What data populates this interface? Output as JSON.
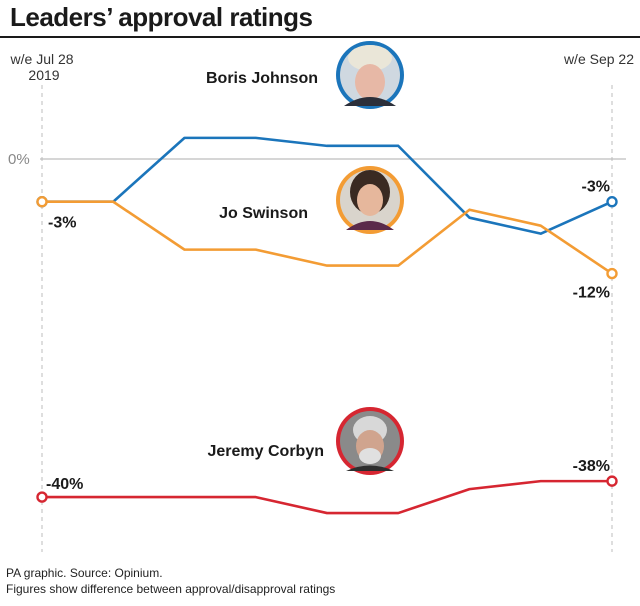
{
  "title": "Leaders’ approval ratings",
  "footer": {
    "source": "PA graphic. Source: Opinium.",
    "note": "Figures show difference between approval/disapproval ratings"
  },
  "chart_data": {
    "type": "line",
    "x_start_label": "w/e Jul 28\n2019",
    "x_end_label": "w/e Sep 22",
    "zero_label": "0%",
    "grid": false,
    "n_points": 9,
    "ylim": [
      -45,
      12
    ],
    "series": [
      {
        "name": "Boris Johnson",
        "color": "#1b75bb",
        "values": [
          -3,
          -3,
          5,
          5,
          4,
          4,
          -5,
          -7,
          -3
        ],
        "start_label": "",
        "end_label": "-3%",
        "avatar": "boris-johnson-photo"
      },
      {
        "name": "Jo Swinson",
        "color": "#f39c34",
        "values": [
          -3,
          -3,
          -9,
          -9,
          -11,
          -11,
          -4,
          -6,
          -12
        ],
        "start_label": "-3%",
        "end_label": "-12%",
        "avatar": "jo-swinson-photo"
      },
      {
        "name": "Jeremy Corbyn",
        "color": "#d62631",
        "values": [
          -40,
          -40,
          -40,
          -40,
          -42,
          -42,
          -39,
          -38,
          -38
        ],
        "start_label": "-40%",
        "end_label": "-38%",
        "avatar": "jeremy-corbyn-photo"
      }
    ]
  }
}
